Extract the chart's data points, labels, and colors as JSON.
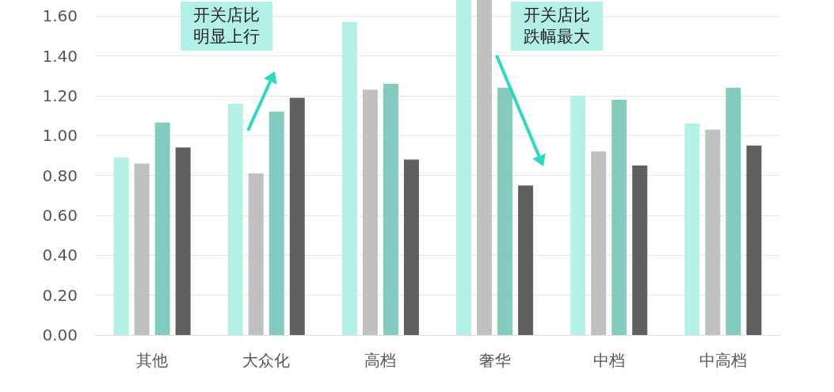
{
  "chart_data": {
    "type": "bar",
    "categories": [
      "其他",
      "大众化",
      "高档",
      "奢华",
      "中档",
      "中高档"
    ],
    "series": [
      {
        "color": "#b3f0e6",
        "values": [
          0.89,
          1.16,
          1.57,
          1.68,
          1.2,
          1.06
        ]
      },
      {
        "color": "#c0c0c0",
        "values": [
          0.86,
          0.81,
          1.23,
          1.68,
          0.92,
          1.03
        ]
      },
      {
        "color": "#83cbbd",
        "values": [
          1.065,
          1.12,
          1.26,
          1.24,
          1.18,
          1.24
        ]
      },
      {
        "color": "#606060",
        "values": [
          0.94,
          1.19,
          0.88,
          0.75,
          0.85,
          0.95
        ]
      }
    ],
    "ylim": [
      0,
      1.68
    ],
    "yticks": [
      {
        "value": 0,
        "label": "0.00"
      },
      {
        "value": 0.2,
        "label": "0.20"
      },
      {
        "value": 0.4,
        "label": "0.40"
      },
      {
        "value": 0.6,
        "label": "0.60"
      },
      {
        "value": 0.8,
        "label": "0.80"
      },
      {
        "value": 1.0,
        "label": "1.00"
      },
      {
        "value": 1.2,
        "label": "1.20"
      },
      {
        "value": 1.4,
        "label": "1.40"
      },
      {
        "value": 1.6,
        "label": "1.60"
      }
    ],
    "grid": "y",
    "annotations": [
      "开关店比明显上行",
      "开关店比跌幅最大"
    ]
  }
}
